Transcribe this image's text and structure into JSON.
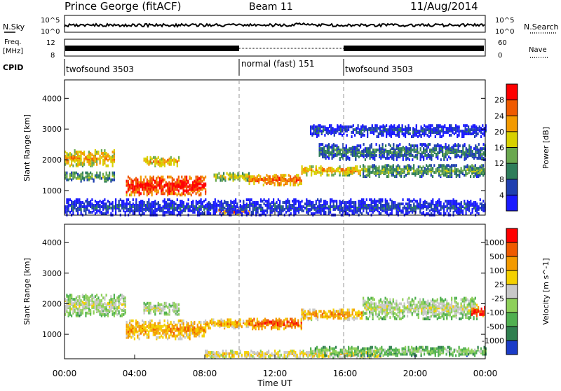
{
  "header": {
    "title": "Prince George (fitACF)",
    "beam": "Beam 11",
    "date": "11/Aug/2014"
  },
  "top_panels": {
    "nsky": {
      "label": "N.Sky",
      "ticks": [
        "10^5",
        "10^0"
      ]
    },
    "nsearch": {
      "label": "N.Search",
      "ticks": [
        "10^5",
        "10^0"
      ]
    },
    "freq": {
      "label_line1": "Freq.",
      "label_line2": "[MHz]",
      "ticks": [
        "12",
        "8"
      ]
    },
    "nave": {
      "label": "Nave",
      "ticks": [
        "60",
        "0"
      ]
    },
    "cpid": {
      "label": "CPID",
      "segments": [
        {
          "name": "twofsound 3503",
          "start_hour": 0,
          "end_hour": 10
        },
        {
          "name": "normal (fast) 151",
          "start_hour": 10,
          "end_hour": 16
        },
        {
          "name": "twofsound 3503",
          "start_hour": 16,
          "end_hour": 24
        }
      ]
    }
  },
  "x_axis": {
    "label": "Time UT",
    "ticks": [
      "00:00",
      "04:00",
      "08:00",
      "12:00",
      "16:00",
      "20:00",
      "00:00"
    ],
    "range_hours": [
      0,
      24
    ]
  },
  "chart_data": [
    {
      "type": "heatmap",
      "panel": "power",
      "ylabel": "Slant Range [km]",
      "yticks": [
        "1000",
        "2000",
        "3000",
        "4000"
      ],
      "ylim": [
        200,
        4600
      ],
      "colorbar": {
        "label": "Power [dB]",
        "ticks": [
          "4",
          "8",
          "12",
          "16",
          "20",
          "24",
          "28"
        ],
        "colors": [
          "#1a1aff",
          "#1f3fb0",
          "#2e7d5a",
          "#6aa84f",
          "#d8d000",
          "#f39a00",
          "#ef5a00",
          "#ff0000"
        ]
      },
      "bands": [
        {
          "t0": 0.0,
          "t1": 2.8,
          "r_center": 2100,
          "r_width": 500,
          "level": 5
        },
        {
          "t0": 0.0,
          "t1": 2.8,
          "r_center": 1500,
          "r_width": 300,
          "level": 3
        },
        {
          "t0": 3.5,
          "t1": 8.0,
          "r_center": 1200,
          "r_width": 600,
          "level": 7
        },
        {
          "t0": 4.5,
          "t1": 6.5,
          "r_center": 2000,
          "r_width": 300,
          "level": 5
        },
        {
          "t0": 8.5,
          "t1": 10.5,
          "r_center": 1500,
          "r_width": 250,
          "level": 4
        },
        {
          "t0": 10.5,
          "t1": 13.5,
          "r_center": 1400,
          "r_width": 350,
          "level": 6
        },
        {
          "t0": 13.5,
          "t1": 17.0,
          "r_center": 1700,
          "r_width": 300,
          "level": 5
        },
        {
          "t0": 17.0,
          "t1": 24.0,
          "r_center": 1700,
          "r_width": 400,
          "level": 3
        },
        {
          "t0": 14.5,
          "t1": 24.0,
          "r_center": 2300,
          "r_width": 500,
          "level": 2
        },
        {
          "t0": 8.5,
          "t1": 10.5,
          "r_center": 350,
          "r_width": 150,
          "level": 6
        },
        {
          "t0": 0.0,
          "t1": 24.0,
          "r_center": 500,
          "r_width": 500,
          "level": 1
        },
        {
          "t0": 14.0,
          "t1": 24.0,
          "r_center": 3000,
          "r_width": 400,
          "level": 1
        }
      ]
    },
    {
      "type": "heatmap",
      "panel": "velocity",
      "ylabel": "Slant Range [km]",
      "yticks": [
        "1000",
        "2000",
        "3000",
        "4000"
      ],
      "ylim": [
        200,
        4600
      ],
      "colorbar": {
        "label": "Velocity [m s^-1]",
        "ticks": [
          "1000",
          "500",
          "100",
          "25",
          "-25",
          "-100",
          "-500",
          "-1000"
        ],
        "colors": [
          "#1b3cc8",
          "#2f7f4f",
          "#50b050",
          "#8ed05a",
          "#c8c8c8",
          "#f4d000",
          "#f39a00",
          "#ef5a00",
          "#ff0000"
        ]
      },
      "bands": [
        {
          "t0": 0.0,
          "t1": 3.5,
          "r_center": 2000,
          "r_width": 700,
          "level": 4
        },
        {
          "t0": 3.5,
          "t1": 8.0,
          "r_center": 1200,
          "r_width": 600,
          "level": 6
        },
        {
          "t0": 4.5,
          "t1": 6.5,
          "r_center": 1900,
          "r_width": 400,
          "level": 4
        },
        {
          "t0": 8.0,
          "t1": 10.5,
          "r_center": 1400,
          "r_width": 300,
          "level": 6
        },
        {
          "t0": 10.5,
          "t1": 13.5,
          "r_center": 1400,
          "r_width": 350,
          "level": 7
        },
        {
          "t0": 13.5,
          "t1": 17.0,
          "r_center": 1700,
          "r_width": 350,
          "level": 6
        },
        {
          "t0": 17.0,
          "t1": 23.5,
          "r_center": 1900,
          "r_width": 700,
          "level": 4
        },
        {
          "t0": 23.2,
          "t1": 24.0,
          "r_center": 1800,
          "r_width": 300,
          "level": 8
        },
        {
          "t0": 8.0,
          "t1": 18.0,
          "r_center": 400,
          "r_width": 250,
          "level": 5
        },
        {
          "t0": 14.0,
          "t1": 24.0,
          "r_center": 500,
          "r_width": 300,
          "level": 3
        }
      ]
    }
  ]
}
